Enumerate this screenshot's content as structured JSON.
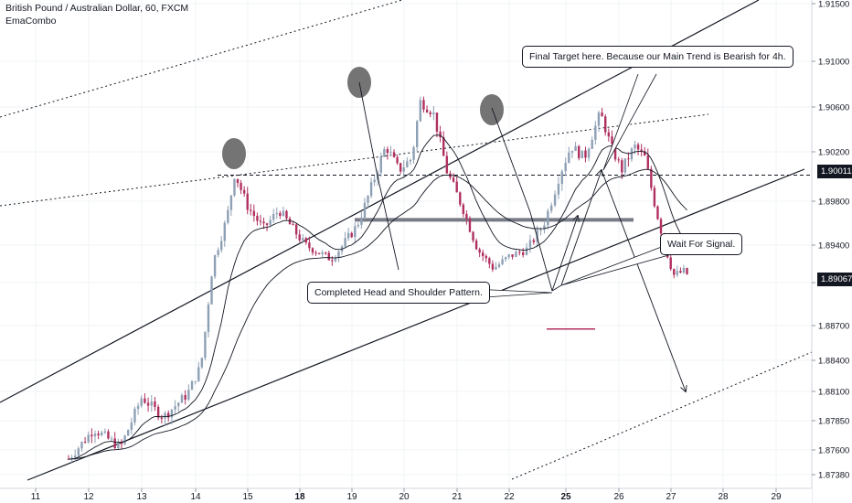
{
  "header": {
    "title": "British Pound / Australian Dollar, 60, FXCM",
    "indicator": "EmaCombo"
  },
  "annotations": {
    "final_target": "Final Target here. Because our Main Trend is Bearish for 4h.",
    "wait_signal": "Wait For Signal.",
    "completed_pattern": "Completed Head and Shoulder Pattern."
  },
  "price_tags": {
    "level": "1.90011",
    "current": "1.89067"
  },
  "colors": {
    "bull": "#8ea0b5",
    "bear": "#b03060",
    "line": "#131722",
    "grid": "#f2f3f5",
    "target_marker": "#b03060",
    "head_marker": "#5c5c5c"
  },
  "chart_data": {
    "type": "candlestick",
    "symbol": "British Pound / Australian Dollar, 60, FXCM",
    "x_axis": {
      "ticks": [
        "11",
        "12",
        "13",
        "14",
        "15",
        "18",
        "19",
        "20",
        "21",
        "22",
        "25",
        "26",
        "27",
        "28",
        "29"
      ],
      "bold_ticks": [
        "18",
        "25"
      ]
    },
    "y_axis": {
      "ticks": [
        "1.91500",
        "1.91000",
        "1.90600",
        "1.90200",
        "1.89800",
        "1.89400",
        "1.89000",
        "1.88700",
        "1.88400",
        "1.88100",
        "1.87850",
        "1.87600",
        "1.87380"
      ],
      "ylim": [
        1.8733,
        1.9155
      ]
    },
    "key_levels": {
      "neckline_price": 1.8963,
      "horizontal_dashed": 1.90011,
      "current_price": 1.89067,
      "target_marker_price": 1.8867
    },
    "price_path": [
      {
        "day": 11.62,
        "price": 1.8752
      },
      {
        "day": 12.1,
        "price": 1.8778
      },
      {
        "day": 12.6,
        "price": 1.8762
      },
      {
        "day": 13.0,
        "price": 1.8805
      },
      {
        "day": 13.4,
        "price": 1.8788
      },
      {
        "day": 13.85,
        "price": 1.8808
      },
      {
        "day": 14.1,
        "price": 1.8835
      },
      {
        "day": 14.35,
        "price": 1.8925
      },
      {
        "day": 14.6,
        "price": 1.8965
      },
      {
        "day": 14.75,
        "price": 1.9003
      },
      {
        "day": 15.0,
        "price": 1.8975
      },
      {
        "day": 15.3,
        "price": 1.8955
      },
      {
        "day": 15.6,
        "price": 1.8972
      },
      {
        "day": 16.1,
        "price": 1.894
      },
      {
        "day": 16.6,
        "price": 1.8925
      },
      {
        "day": 17.1,
        "price": 1.8958
      },
      {
        "day": 17.4,
        "price": 1.8995
      },
      {
        "day": 17.65,
        "price": 1.9025
      },
      {
        "day": 17.9,
        "price": 1.9005
      },
      {
        "day": 18.15,
        "price": 1.9015
      },
      {
        "day": 18.3,
        "price": 1.9065
      },
      {
        "day": 18.55,
        "price": 1.9055
      },
      {
        "day": 18.8,
        "price": 1.9005
      },
      {
        "day": 19.1,
        "price": 1.8975
      },
      {
        "day": 19.4,
        "price": 1.8935
      },
      {
        "day": 19.7,
        "price": 1.8915
      },
      {
        "day": 20.0,
        "price": 1.8928
      },
      {
        "day": 20.3,
        "price": 1.8935
      },
      {
        "day": 20.6,
        "price": 1.8958
      },
      {
        "day": 20.9,
        "price": 1.9003
      },
      {
        "day": 21.1,
        "price": 1.9025
      },
      {
        "day": 21.35,
        "price": 1.9015
      },
      {
        "day": 21.5,
        "price": 1.9035
      },
      {
        "day": 21.65,
        "price": 1.9055
      },
      {
        "day": 21.85,
        "price": 1.9025
      },
      {
        "day": 22.05,
        "price": 1.9005
      },
      {
        "day": 22.3,
        "price": 1.9025
      },
      {
        "day": 22.5,
        "price": 1.9015
      },
      {
        "day": 22.65,
        "price": 1.8985
      },
      {
        "day": 22.85,
        "price": 1.8945
      },
      {
        "day": 23.05,
        "price": 1.8908
      },
      {
        "day": 23.25,
        "price": 1.8912
      },
      {
        "day": 23.35,
        "price": 1.8907
      }
    ]
  }
}
